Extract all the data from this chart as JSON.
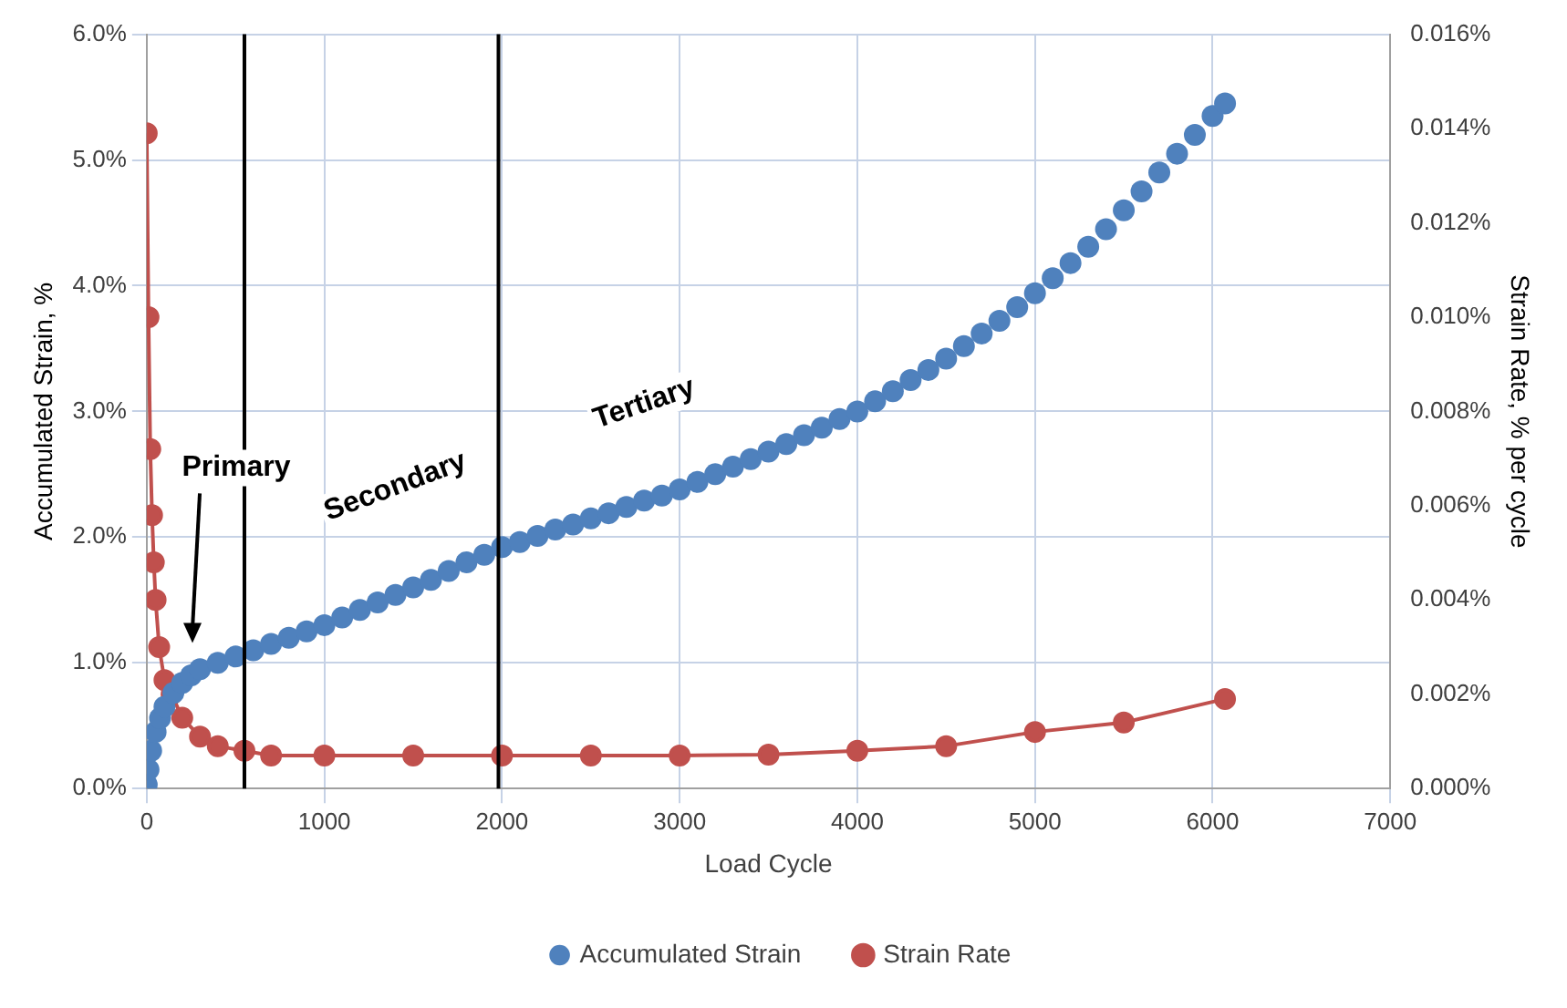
{
  "chart_data": {
    "type": "scatter",
    "xlabel": "Load Cycle",
    "ylabel": "Accumulated Strain, %",
    "y2label": "Strain Rate, % per cycle",
    "xlim": [
      0,
      7000
    ],
    "xticks": [
      0,
      1000,
      2000,
      3000,
      4000,
      5000,
      6000,
      7000
    ],
    "ylim": [
      0,
      6
    ],
    "yticks": [
      {
        "value": 0,
        "label": "0.0%"
      },
      {
        "value": 1,
        "label": "1.0%"
      },
      {
        "value": 2,
        "label": "2.0%"
      },
      {
        "value": 3,
        "label": "3.0%"
      },
      {
        "value": 4,
        "label": "4.0%"
      },
      {
        "value": 5,
        "label": "5.0%"
      },
      {
        "value": 6,
        "label": "6.0%"
      }
    ],
    "y2lim": [
      0,
      0.016
    ],
    "y2ticks": [
      {
        "value": 0,
        "label": "0.000%"
      },
      {
        "value": 0.002,
        "label": "0.002%"
      },
      {
        "value": 0.004,
        "label": "0.004%"
      },
      {
        "value": 0.006,
        "label": "0.006%"
      },
      {
        "value": 0.008,
        "label": "0.008%"
      },
      {
        "value": 0.01,
        "label": "0.010%"
      },
      {
        "value": 0.012,
        "label": "0.012%"
      },
      {
        "value": 0.014,
        "label": "0.014%"
      },
      {
        "value": 0.016,
        "label": "0.016%"
      }
    ],
    "grid": true,
    "legend": "bottom",
    "marker": "circle",
    "series": [
      {
        "name": "Accumulated Strain",
        "color": "#4f81bd",
        "x": [
          0,
          10,
          25,
          50,
          75,
          100,
          150,
          200,
          250,
          300,
          400,
          500,
          600,
          700,
          800,
          900,
          1000,
          1100,
          1200,
          1300,
          1400,
          1500,
          1600,
          1700,
          1800,
          1900,
          2000,
          2100,
          2200,
          2300,
          2400,
          2500,
          2600,
          2700,
          2800,
          2900,
          3000,
          3100,
          3200,
          3300,
          3400,
          3500,
          3600,
          3700,
          3800,
          3900,
          4000,
          4100,
          4200,
          4300,
          4400,
          4500,
          4600,
          4700,
          4800,
          4900,
          5000,
          5100,
          5200,
          5300,
          5400,
          5500,
          5600,
          5700,
          5800,
          5900,
          6000,
          6070
        ],
        "values": [
          0.03,
          0.15,
          0.3,
          0.45,
          0.56,
          0.65,
          0.76,
          0.84,
          0.9,
          0.95,
          1.0,
          1.05,
          1.1,
          1.15,
          1.2,
          1.25,
          1.3,
          1.36,
          1.42,
          1.48,
          1.54,
          1.6,
          1.66,
          1.73,
          1.8,
          1.86,
          1.92,
          1.96,
          2.01,
          2.06,
          2.1,
          2.15,
          2.19,
          2.24,
          2.29,
          2.33,
          2.38,
          2.44,
          2.5,
          2.56,
          2.62,
          2.68,
          2.74,
          2.81,
          2.87,
          2.94,
          3.0,
          3.08,
          3.16,
          3.25,
          3.33,
          3.42,
          3.52,
          3.62,
          3.72,
          3.83,
          3.94,
          4.06,
          4.18,
          4.31,
          4.45,
          4.6,
          4.75,
          4.9,
          5.05,
          5.2,
          5.35,
          5.45
        ]
      },
      {
        "name": "Strain Rate",
        "type": "line",
        "axis": "y2",
        "color": "#c0504d",
        "x": [
          0,
          10,
          20,
          30,
          40,
          50,
          70,
          100,
          140,
          200,
          300,
          400,
          550,
          700,
          1000,
          1500,
          2000,
          2500,
          3000,
          3500,
          4000,
          4500,
          5000,
          5500,
          6070
        ],
        "values": [
          0.0139,
          0.01,
          0.0072,
          0.0058,
          0.0048,
          0.004,
          0.003,
          0.0023,
          0.002,
          0.0015,
          0.0011,
          0.0009,
          0.0008,
          0.0007,
          0.0007,
          0.0007,
          0.0007,
          0.0007,
          0.0007,
          0.00072,
          0.0008,
          0.0009,
          0.0012,
          0.0014,
          0.0019
        ]
      }
    ],
    "ref_lines": [
      {
        "axis": "x",
        "value": 550,
        "color": "#000000"
      },
      {
        "axis": "x",
        "value": 1980,
        "color": "#000000"
      }
    ],
    "annotations": [
      "Primary",
      "Secondary",
      "Tertiary"
    ]
  }
}
